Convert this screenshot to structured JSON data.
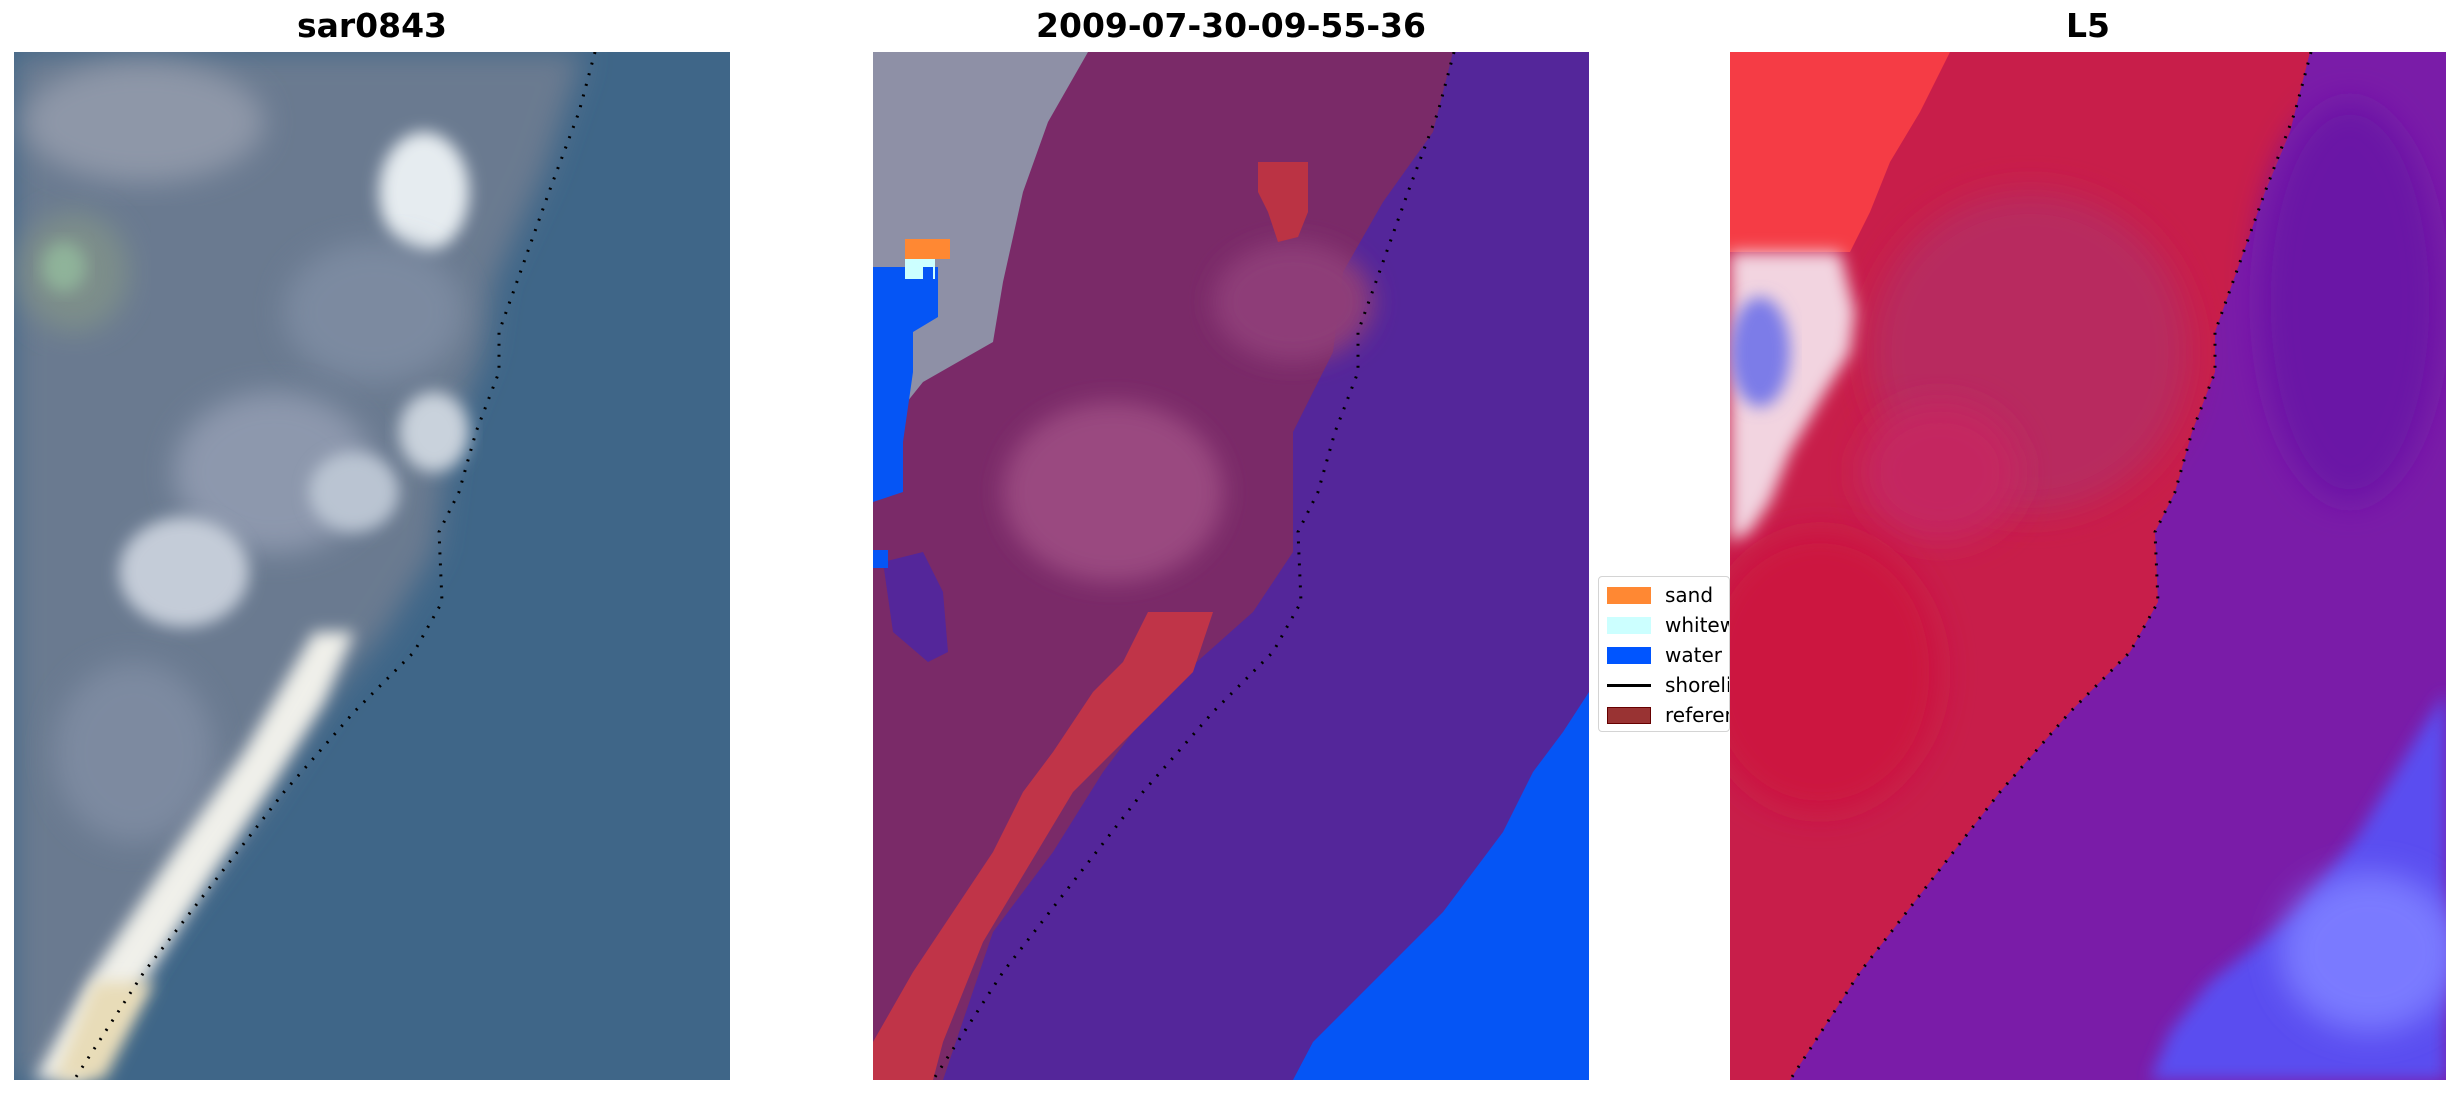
{
  "panels": [
    {
      "title": "sar0843"
    },
    {
      "title": "2009-07-30-09-55-36"
    },
    {
      "title": "L5"
    }
  ],
  "legend": {
    "items": [
      {
        "label": "sand",
        "color": "#ff8833",
        "kind": "patch"
      },
      {
        "label": "whitewater",
        "color": "#ccffff",
        "kind": "patch"
      },
      {
        "label": "water",
        "color": "#0055ff",
        "kind": "patch"
      },
      {
        "label": "shoreline",
        "color": "#000000",
        "kind": "line"
      },
      {
        "label": "reference",
        "color": "#993333",
        "kind": "patch"
      }
    ]
  }
}
